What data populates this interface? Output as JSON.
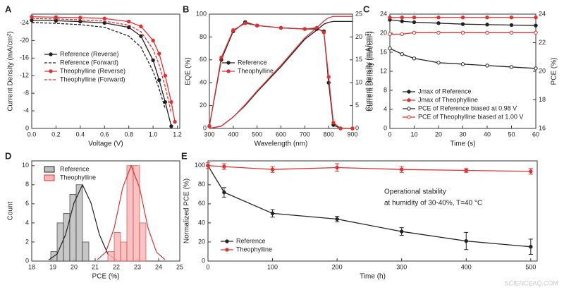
{
  "chart_data": [
    {
      "type": "line",
      "panel": "A",
      "xlabel": "Voltage (V)",
      "ylabel": "Current Density (mA/cm²)",
      "xlim": [
        0,
        1.22
      ],
      "xticks": [
        {
          "value": 0,
          "label": "0.0"
        },
        0.2,
        0.4,
        0.6,
        0.8,
        {
          "value": 1,
          "label": "1.0"
        },
        1.2
      ],
      "ylim": [
        0,
        -26
      ],
      "yticks": [
        0,
        -4,
        -8,
        -12,
        -16,
        -20,
        -24
      ],
      "legend": "center-left",
      "x": [
        0,
        0.2,
        0.4,
        0.6,
        0.8,
        0.9,
        1.0,
        1.05,
        1.1,
        1.15,
        1.18
      ],
      "series": [
        {
          "name": "Reference (Reverse)",
          "color": "#222222",
          "marker": "filled",
          "values": [
            -24.6,
            -24.5,
            -24.3,
            -24.0,
            -23.0,
            -21.0,
            -15.5,
            -11,
            -6,
            -0.5,
            null
          ]
        },
        {
          "name": "Reference (Forward)",
          "color": "#222222",
          "dash": true,
          "values": [
            -24.1,
            -23.9,
            -23.6,
            -23.0,
            -21.0,
            -18.5,
            -13,
            -9,
            -4.5,
            null,
            null
          ]
        },
        {
          "name": "Theophylline (Reverse)",
          "color": "#e03030",
          "marker": "filled",
          "values": [
            -25.4,
            -25.3,
            -25.2,
            -25.0,
            -24.3,
            -23.2,
            -20,
            -17,
            -12,
            -6,
            -1.5
          ]
        },
        {
          "name": "Theophylline (Forward)",
          "color": "#e03030",
          "dash": true,
          "values": [
            -25.0,
            -24.9,
            -24.7,
            -24.4,
            -23.5,
            -22,
            -18,
            -14.5,
            -9.5,
            -3.5,
            null
          ]
        }
      ]
    },
    {
      "type": "line",
      "panel": "B",
      "xlabel": "Wavelength (nm)",
      "ylabel": "EQE (%)",
      "y2label": "Current Density (mA/cm²)",
      "xlim": [
        300,
        900
      ],
      "xticks": [
        300,
        400,
        500,
        600,
        700,
        800,
        900
      ],
      "ylim": [
        0,
        100
      ],
      "yticks": [
        0,
        20,
        40,
        60,
        80,
        100
      ],
      "y2lim": [
        0,
        25
      ],
      "y2ticks": [
        0,
        5,
        10,
        15,
        20,
        25
      ],
      "legend": "center-left",
      "x": [
        300,
        350,
        400,
        450,
        500,
        600,
        700,
        750,
        780,
        800,
        820,
        850,
        900
      ],
      "series": [
        {
          "name": "Reference",
          "color": "#222222",
          "marker": "filled",
          "values": [
            2,
            60,
            85,
            93,
            90,
            88,
            87,
            87,
            85,
            40,
            3,
            0,
            0
          ]
        },
        {
          "name": "Theophylline",
          "color": "#e03030",
          "marker": "filled",
          "values": [
            2,
            62,
            86,
            92,
            90,
            88,
            87,
            88,
            84,
            45,
            5,
            0,
            0
          ]
        },
        {
          "color": "#222222",
          "axis": "y2",
          "values": [
            0,
            0.5,
            2.5,
            5,
            8,
            13.5,
            19.5,
            21.5,
            22.8,
            23.2,
            23.4,
            23.4,
            23.4
          ]
        },
        {
          "color": "#e03030",
          "axis": "y2",
          "values": [
            0,
            0.5,
            2.5,
            5.2,
            8.2,
            13.8,
            19.8,
            22,
            23.5,
            24.2,
            24.5,
            24.5,
            24.5
          ]
        }
      ]
    },
    {
      "type": "line",
      "panel": "C",
      "xlabel": "Time (s)",
      "ylabel": "Current Density (mA/cm²)",
      "y2label": "PCE (%)",
      "xlim": [
        0,
        60
      ],
      "xticks": [
        0,
        10,
        20,
        30,
        40,
        50,
        60
      ],
      "ylim": [
        0,
        24
      ],
      "yticks": [
        0,
        4,
        8,
        12,
        16,
        20,
        24
      ],
      "y2lim": [
        16,
        24
      ],
      "y2ticks": [
        16,
        18,
        20,
        22,
        24
      ],
      "legend": "lower-left",
      "x": [
        0,
        5,
        10,
        20,
        30,
        40,
        50,
        60
      ],
      "series": [
        {
          "name": "Jmax of Reference",
          "color": "#222222",
          "marker": "filled",
          "values": [
            22.8,
            22.5,
            22.3,
            22.1,
            21.9,
            21.8,
            21.7,
            21.6
          ]
        },
        {
          "name": "Jmax of Theophylline",
          "color": "#e03030",
          "marker": "filled",
          "values": [
            23.3,
            23.3,
            23.3,
            23.3,
            23.3,
            23.3,
            23.3,
            23.3
          ]
        },
        {
          "name": "PCE of Reference biased at 0.98 V",
          "color": "#222222",
          "marker": "open",
          "axis": "y2",
          "values": [
            21.6,
            21.2,
            20.9,
            20.6,
            20.5,
            20.4,
            20.3,
            20.2
          ]
        },
        {
          "name": "PCE of Theophylline biased at 1.00 V",
          "color": "#e03030",
          "marker": "open",
          "axis": "y2",
          "values": [
            22.6,
            22.6,
            22.7,
            22.7,
            22.7,
            22.7,
            22.7,
            22.7
          ]
        }
      ]
    },
    {
      "type": "histogram",
      "panel": "D",
      "xlabel": "PCE (%)",
      "ylabel": "Count",
      "xlim": [
        18,
        25
      ],
      "xticks": [
        18,
        19,
        20,
        21,
        22,
        23,
        24,
        25
      ],
      "ylim": [
        0,
        10.5
      ],
      "yticks": [
        0,
        2,
        4,
        6,
        8,
        10
      ],
      "legend": "upper-left",
      "bins": [
        18.9,
        19.2,
        19.5,
        19.8,
        20.1,
        20.4,
        20.7,
        21.0,
        21.3,
        21.6,
        21.9,
        22.2,
        22.5,
        22.8,
        23.1,
        23.4
      ],
      "series": [
        {
          "name": "Reference",
          "color": "#222222",
          "fill": "#bdbdbd",
          "values": [
            1,
            4,
            5,
            7,
            8,
            2,
            0,
            0,
            0,
            0,
            0,
            0,
            0,
            0,
            0
          ],
          "fit": {
            "x": [
              18.8,
              19.2,
              19.6,
              20.0,
              20.4,
              20.8,
              21.2,
              21.6,
              22.0
            ],
            "values": [
              0.12,
              0.74,
              2.77,
              6.1,
              8,
              6.1,
              2.77,
              0.74,
              0.12
            ]
          }
        },
        {
          "name": "Theophylline",
          "color": "#e03030",
          "fill": "#f6b8b8",
          "values": [
            0,
            0,
            0,
            0,
            0,
            0,
            0,
            0,
            0,
            1,
            3,
            2,
            10,
            10,
            4
          ],
          "fit": {
            "x": [
              21.1,
              21.5,
              21.9,
              22.3,
              22.7,
              23.1,
              23.5,
              23.9,
              24.3
            ],
            "values": [
              0.15,
              0.93,
              3.47,
              7.67,
              10,
              7.67,
              3.47,
              0.93,
              0.15
            ]
          }
        }
      ]
    },
    {
      "type": "line",
      "panel": "E",
      "xlabel": "Time (h)",
      "ylabel": "Normalized PCE (%)",
      "xlim": [
        0,
        510
      ],
      "xticks": [
        0,
        100,
        200,
        300,
        400,
        500
      ],
      "ylim": [
        0,
        105
      ],
      "yticks": [
        0,
        20,
        40,
        60,
        80,
        100
      ],
      "legend": "lower-left",
      "annotation": [
        "Operational stability",
        "at humidity of 30-40%, T=40 °C"
      ],
      "x": [
        0,
        25,
        100,
        200,
        300,
        400,
        500
      ],
      "series": [
        {
          "name": "Reference",
          "color": "#222222",
          "marker": "filled",
          "values": [
            100,
            72,
            50,
            44,
            31,
            21,
            15
          ],
          "errors": [
            0,
            5,
            4,
            3,
            4,
            9,
            8
          ]
        },
        {
          "name": "Theophylline",
          "color": "#e03030",
          "marker": "filled",
          "values": [
            100,
            99,
            96,
            98,
            96,
            95,
            94
          ],
          "errors": [
            3,
            3,
            3,
            4,
            3,
            2,
            3
          ]
        }
      ]
    }
  ],
  "watermark": "SCIENCEAQ.COM"
}
